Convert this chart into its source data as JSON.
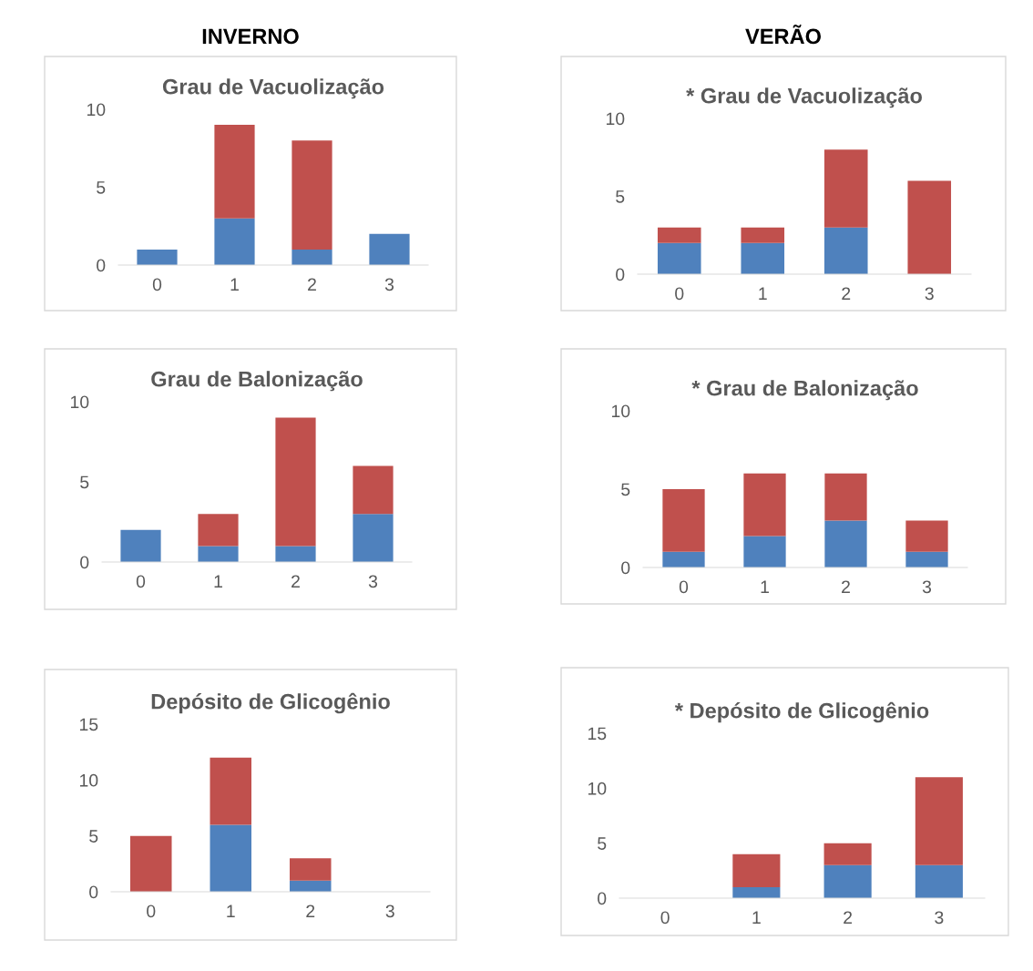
{
  "chart_data": [
    {
      "type": "bar",
      "stacked": true,
      "title": "Grau de Vacuolização",
      "annotations": [
        "INVERNO"
      ],
      "categories": [
        "0",
        "1",
        "2",
        "3"
      ],
      "ylim": [
        0,
        10
      ],
      "yticks": [
        0,
        5,
        10
      ],
      "grid": false,
      "legend": false,
      "series": [
        {
          "color": "#4f81bd",
          "values": [
            1,
            3,
            1,
            2
          ]
        },
        {
          "color": "#c0504d",
          "values": [
            0,
            6,
            7,
            0
          ]
        }
      ]
    },
    {
      "type": "bar",
      "stacked": true,
      "title": "* Grau de Vacuolização",
      "annotations": [
        "VERÃO"
      ],
      "categories": [
        "0",
        "1",
        "2",
        "3"
      ],
      "ylim": [
        0,
        10
      ],
      "yticks": [
        0,
        5,
        10
      ],
      "grid": false,
      "legend": false,
      "series": [
        {
          "color": "#4f81bd",
          "values": [
            2,
            2,
            3,
            0
          ]
        },
        {
          "color": "#c0504d",
          "values": [
            1,
            1,
            5,
            6
          ]
        }
      ]
    },
    {
      "type": "bar",
      "stacked": true,
      "title": "Grau de Balonização",
      "categories": [
        "0",
        "1",
        "2",
        "3"
      ],
      "ylim": [
        0,
        10
      ],
      "yticks": [
        0,
        5,
        10
      ],
      "grid": false,
      "legend": false,
      "series": [
        {
          "color": "#4f81bd",
          "values": [
            2,
            1,
            1,
            3
          ]
        },
        {
          "color": "#c0504d",
          "values": [
            0,
            2,
            8,
            3
          ]
        }
      ]
    },
    {
      "type": "bar",
      "stacked": true,
      "title": "* Grau de Balonização",
      "categories": [
        "0",
        "1",
        "2",
        "3"
      ],
      "ylim": [
        0,
        10
      ],
      "yticks": [
        0,
        5,
        10
      ],
      "grid": false,
      "legend": false,
      "series": [
        {
          "color": "#4f81bd",
          "values": [
            1,
            2,
            3,
            1
          ]
        },
        {
          "color": "#c0504d",
          "values": [
            4,
            4,
            3,
            2
          ]
        }
      ]
    },
    {
      "type": "bar",
      "stacked": true,
      "title": "Depósito de Glicogênio",
      "categories": [
        "0",
        "1",
        "2",
        "3"
      ],
      "ylim": [
        0,
        15
      ],
      "yticks": [
        0,
        5,
        10,
        15
      ],
      "grid": false,
      "legend": false,
      "series": [
        {
          "color": "#4f81bd",
          "values": [
            0,
            6,
            1,
            0
          ]
        },
        {
          "color": "#c0504d",
          "values": [
            5,
            6,
            2,
            0
          ]
        }
      ]
    },
    {
      "type": "bar",
      "stacked": true,
      "title": "* Depósito de Glicogênio",
      "categories": [
        "0",
        "1",
        "2",
        "3"
      ],
      "ylim": [
        0,
        15
      ],
      "yticks": [
        0,
        5,
        10,
        15
      ],
      "grid": false,
      "legend": false,
      "series": [
        {
          "color": "#4f81bd",
          "values": [
            0,
            1,
            3,
            3
          ]
        },
        {
          "color": "#c0504d",
          "values": [
            0,
            3,
            2,
            8
          ]
        }
      ]
    }
  ]
}
